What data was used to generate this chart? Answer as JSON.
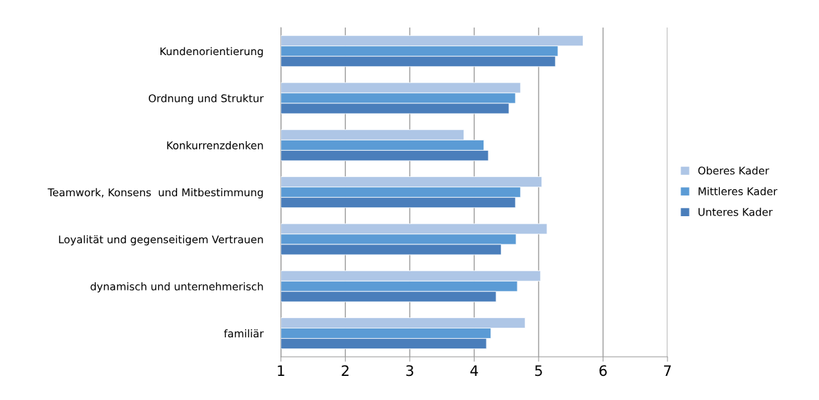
{
  "chart_data": {
    "type": "bar",
    "orientation": "horizontal",
    "categories": [
      "Kundenorientierung",
      "Ordnung und Struktur",
      "Konkurrenzdenken",
      "Teamwork, Konsens  und Mitbestimmung",
      "Loyalität und gegenseitigem Vertrauen",
      "dynamisch und unternehmerisch",
      "familiär"
    ],
    "series": [
      {
        "name": "Oberes Kader",
        "color": "#aec6e6",
        "values": [
          5.69,
          4.72,
          3.84,
          5.05,
          5.13,
          5.03,
          4.79
        ]
      },
      {
        "name": "Mittleres Kader",
        "color": "#5b9bd5",
        "values": [
          5.3,
          4.64,
          4.15,
          4.72,
          4.65,
          4.67,
          4.26
        ]
      },
      {
        "name": "Unteres Kader",
        "color": "#4a7ebb",
        "values": [
          5.26,
          4.54,
          4.22,
          4.64,
          4.42,
          4.34,
          4.19
        ]
      }
    ],
    "xlim": [
      1,
      7
    ],
    "xticks": [
      1,
      2,
      3,
      4,
      5,
      6,
      7
    ],
    "grid": "x",
    "legend": "right"
  }
}
